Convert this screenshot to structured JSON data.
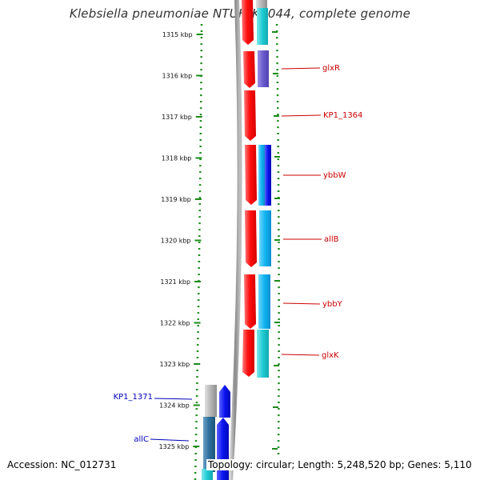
{
  "title": "Klebsiella pneumoniae NTUH-K2044, complete genome",
  "footer": {
    "accession": "Accession: NC_012731",
    "topology": "Topology: circular; Length: 5,248,520 bp; Genes: 5,110"
  },
  "ticks": [
    {
      "label": "1315 kbp",
      "kbp": 1315
    },
    {
      "label": "1316 kbp",
      "kbp": 1316
    },
    {
      "label": "1317 kbp",
      "kbp": 1317
    },
    {
      "label": "1318 kbp",
      "kbp": 1318
    },
    {
      "label": "1319 kbp",
      "kbp": 1319
    },
    {
      "label": "1320 kbp",
      "kbp": 1320
    },
    {
      "label": "1321 kbp",
      "kbp": 1321
    },
    {
      "label": "1322 kbp",
      "kbp": 1322
    },
    {
      "label": "1323 kbp",
      "kbp": 1323
    },
    {
      "label": "1324 kbp",
      "kbp": 1324
    },
    {
      "label": "1325 kbp",
      "kbp": 1325
    }
  ],
  "gene_labels": [
    {
      "name": "glxR",
      "color": "#cc0000"
    },
    {
      "name": "KP1_1364",
      "color": "#cc0000"
    },
    {
      "name": "ybbW",
      "color": "#cc0000"
    },
    {
      "name": "allB",
      "color": "#cc0000"
    },
    {
      "name": "ybbY",
      "color": "#cc0000"
    },
    {
      "name": "glxK",
      "color": "#cc0000"
    },
    {
      "name": "KP1_1371",
      "color": "#0000bb"
    },
    {
      "name": "allC",
      "color": "#0000bb"
    }
  ],
  "colors": {
    "cds_red": "#ff1a1a",
    "cyan": "#22c8d0",
    "sky": "#14b4ef",
    "purple": "#6a5acd",
    "blue": "#0a14ef",
    "grey": "#b4b4b4",
    "steel": "#2c6e9c",
    "backbone": "#888888",
    "ticks": "#1a8a1a"
  }
}
